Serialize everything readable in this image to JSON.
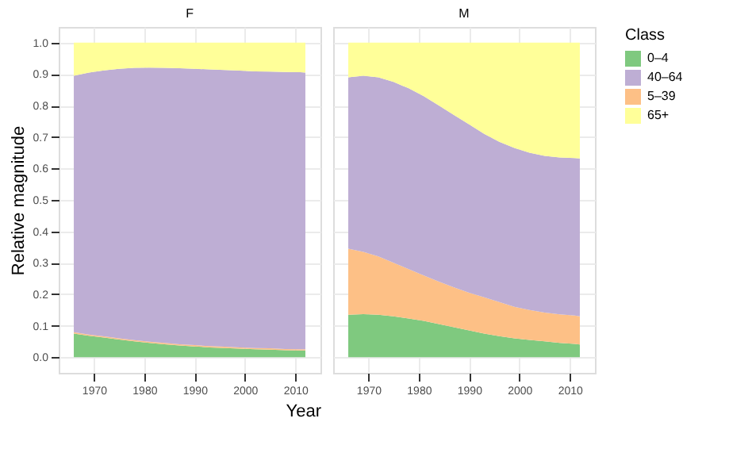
{
  "chart_data": [
    {
      "type": "area",
      "stacked": true,
      "title": "F",
      "ylabel": "Relative magnitude",
      "xlabel": "Year",
      "legend_title": "Class",
      "legend": "right",
      "grid": true,
      "x": [
        1966,
        1969,
        1972,
        1975,
        1978,
        1981,
        1984,
        1987,
        1990,
        1993,
        1996,
        1999,
        2002,
        2005,
        2008,
        2011,
        2012
      ],
      "xlim": [
        1963,
        2015
      ],
      "xticks": [
        1970,
        1980,
        1990,
        2000,
        2010
      ],
      "ylim": [
        -0.05,
        1.05
      ],
      "yticks": [
        {
          "value": 0,
          "label": "0.0"
        },
        0.1,
        0.2,
        0.3,
        0.4,
        0.5,
        0.6,
        0.7,
        0.8,
        0.9,
        {
          "value": 1,
          "label": "1.0"
        }
      ],
      "series": [
        {
          "name": "0–4",
          "color": "#7fc97f",
          "values": [
            0.075,
            0.068,
            0.062,
            0.056,
            0.05,
            0.045,
            0.041,
            0.037,
            0.034,
            0.031,
            0.029,
            0.027,
            0.025,
            0.024,
            0.022,
            0.021,
            0.021
          ]
        },
        {
          "name": "5–39",
          "color": "#fdc086",
          "values": [
            0.004,
            0.004,
            0.004,
            0.004,
            0.004,
            0.004,
            0.004,
            0.004,
            0.004,
            0.004,
            0.004,
            0.004,
            0.004,
            0.004,
            0.004,
            0.004,
            0.004
          ]
        },
        {
          "name": "40–64",
          "color": "#beaed4",
          "values": [
            0.816,
            0.833,
            0.846,
            0.857,
            0.866,
            0.872,
            0.875,
            0.878,
            0.879,
            0.88,
            0.88,
            0.88,
            0.88,
            0.88,
            0.881,
            0.881,
            0.88
          ]
        },
        {
          "name": "65+",
          "color": "#ffff99",
          "values": [
            0.105,
            0.095,
            0.088,
            0.083,
            0.08,
            0.079,
            0.08,
            0.081,
            0.083,
            0.085,
            0.087,
            0.089,
            0.091,
            0.092,
            0.093,
            0.094,
            0.095
          ]
        }
      ]
    },
    {
      "type": "area",
      "stacked": true,
      "title": "M",
      "grid": true,
      "tick_labels": "x",
      "x": [
        1966,
        1969,
        1972,
        1975,
        1978,
        1981,
        1984,
        1987,
        1990,
        1993,
        1996,
        1999,
        2002,
        2005,
        2008,
        2011,
        2012
      ],
      "xlim": [
        1963,
        2015
      ],
      "xticks": [
        1970,
        1980,
        1990,
        2000,
        2010
      ],
      "ylim": [
        -0.05,
        1.05
      ],
      "yticks": [
        0,
        0.1,
        0.2,
        0.3,
        0.4,
        0.5,
        0.6,
        0.7,
        0.8,
        0.9,
        1
      ],
      "series": [
        {
          "name": "0–4",
          "color": "#7fc97f",
          "values": [
            0.135,
            0.137,
            0.135,
            0.13,
            0.123,
            0.115,
            0.105,
            0.095,
            0.085,
            0.075,
            0.067,
            0.06,
            0.055,
            0.05,
            0.045,
            0.042,
            0.04
          ]
        },
        {
          "name": "5–39",
          "color": "#fdc086",
          "values": [
            0.21,
            0.198,
            0.185,
            0.17,
            0.157,
            0.145,
            0.135,
            0.127,
            0.12,
            0.115,
            0.108,
            0.1,
            0.095,
            0.092,
            0.091,
            0.09,
            0.09
          ]
        },
        {
          "name": "40–64",
          "color": "#beaed4",
          "values": [
            0.545,
            0.56,
            0.57,
            0.575,
            0.575,
            0.57,
            0.56,
            0.548,
            0.535,
            0.52,
            0.51,
            0.505,
            0.5,
            0.498,
            0.499,
            0.501,
            0.502
          ]
        },
        {
          "name": "65+",
          "color": "#ffff99",
          "values": [
            0.11,
            0.105,
            0.11,
            0.125,
            0.145,
            0.17,
            0.2,
            0.23,
            0.26,
            0.29,
            0.315,
            0.335,
            0.35,
            0.36,
            0.365,
            0.367,
            0.368
          ]
        }
      ]
    }
  ]
}
